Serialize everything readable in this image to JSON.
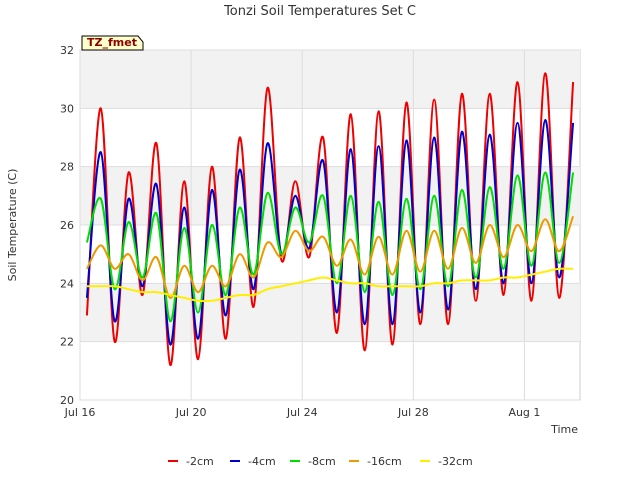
{
  "chart_data": {
    "type": "line",
    "title": "Tonzi Soil Temperatures Set C",
    "xlabel": "Time",
    "ylabel": "Soil Temperature (C)",
    "badge": "TZ_fmet",
    "ylim": [
      20,
      32
    ],
    "yticks": [
      20,
      22,
      24,
      26,
      28,
      30,
      32
    ],
    "xlim": [
      0,
      18
    ],
    "xticks": [
      {
        "label": "Jul 16",
        "day": 0
      },
      {
        "label": "Jul 20",
        "day": 4
      },
      {
        "label": "Jul 24",
        "day": 8
      },
      {
        "label": "Jul 28",
        "day": 12
      },
      {
        "label": "Aug 1",
        "day": 16
      }
    ],
    "grid": true,
    "legend_position": "bottom",
    "x_days": [
      0.25,
      0.75,
      1.25,
      1.75,
      2.25,
      2.75,
      3.25,
      3.75,
      4.25,
      4.75,
      5.25,
      5.75,
      6.25,
      6.75,
      7.25,
      7.75,
      8.25,
      8.75,
      9.25,
      9.75,
      10.25,
      10.75,
      11.25,
      11.75,
      12.25,
      12.75,
      13.25,
      13.75,
      14.25,
      14.75,
      15.25,
      15.75,
      16.25,
      16.75,
      17.25,
      17.75
    ],
    "series": [
      {
        "name": "-2cm",
        "color": "#ee0000",
        "values": [
          22.9,
          30.0,
          22.0,
          27.8,
          23.6,
          28.8,
          21.2,
          27.5,
          21.4,
          28.0,
          22.1,
          29.0,
          23.2,
          30.7,
          24.8,
          27.5,
          24.9,
          29.0,
          22.3,
          29.8,
          21.7,
          29.9,
          21.9,
          30.2,
          22.6,
          30.3,
          22.6,
          30.5,
          23.4,
          30.5,
          23.6,
          30.9,
          23.4,
          31.2,
          23.5,
          30.9
        ]
      },
      {
        "name": "-4cm",
        "color": "#0000cc",
        "values": [
          23.5,
          28.5,
          22.7,
          26.9,
          23.9,
          27.4,
          21.9,
          26.6,
          22.1,
          27.2,
          22.9,
          27.9,
          23.8,
          28.8,
          25.0,
          27.0,
          25.2,
          28.2,
          23.0,
          28.6,
          22.6,
          28.7,
          22.6,
          28.9,
          23.0,
          29.0,
          23.1,
          29.2,
          23.8,
          29.1,
          24.0,
          29.5,
          24.0,
          29.6,
          24.2,
          29.5
        ]
      },
      {
        "name": "-8cm",
        "color": "#00dd00",
        "values": [
          25.4,
          26.9,
          23.8,
          26.1,
          24.2,
          26.4,
          22.7,
          25.9,
          23.0,
          26.0,
          23.6,
          26.6,
          24.3,
          27.1,
          25.0,
          26.6,
          25.4,
          27.0,
          24.0,
          27.0,
          23.7,
          26.8,
          23.6,
          26.9,
          23.8,
          27.0,
          23.9,
          27.2,
          24.2,
          27.3,
          24.5,
          27.7,
          24.6,
          27.8,
          24.7,
          27.8
        ]
      },
      {
        "name": "-16cm",
        "color": "#ee9900",
        "values": [
          24.5,
          25.3,
          24.5,
          25.0,
          24.1,
          24.9,
          23.5,
          24.6,
          23.7,
          24.6,
          23.9,
          25.0,
          24.2,
          25.4,
          24.9,
          25.8,
          25.1,
          25.6,
          24.6,
          25.5,
          24.3,
          25.6,
          24.3,
          25.8,
          24.4,
          25.8,
          24.5,
          25.9,
          24.7,
          26.0,
          24.9,
          26.0,
          25.1,
          26.2,
          25.1,
          26.3
        ]
      },
      {
        "name": "-32cm",
        "color": "#ffee00",
        "values": [
          23.9,
          23.9,
          23.9,
          23.8,
          23.7,
          23.7,
          23.6,
          23.5,
          23.4,
          23.4,
          23.5,
          23.6,
          23.6,
          23.8,
          23.9,
          24.0,
          24.1,
          24.2,
          24.1,
          24.0,
          24.0,
          23.9,
          23.9,
          23.9,
          23.9,
          24.0,
          24.0,
          24.1,
          24.1,
          24.1,
          24.2,
          24.2,
          24.3,
          24.4,
          24.5,
          24.5
        ]
      }
    ]
  }
}
